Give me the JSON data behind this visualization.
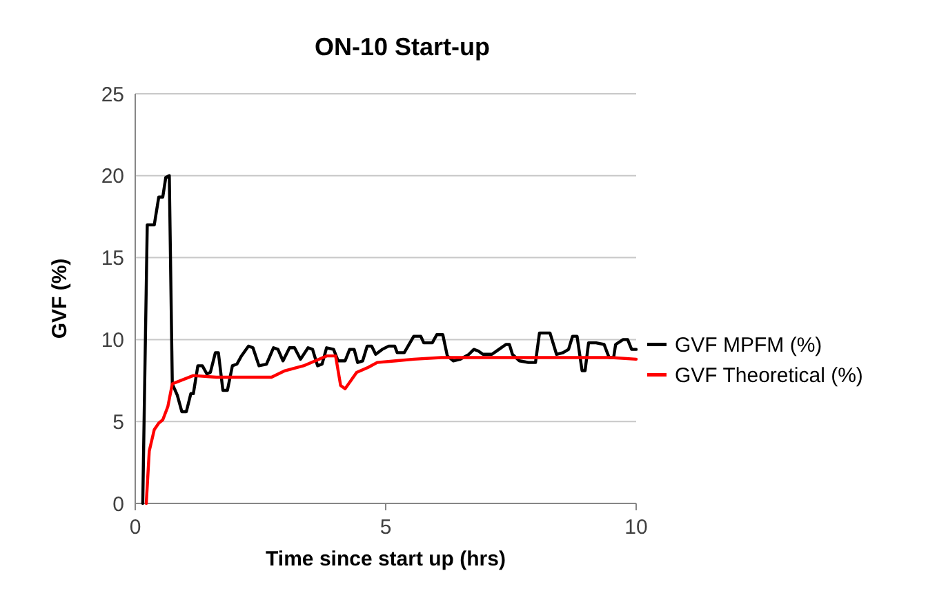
{
  "chart_data": {
    "type": "line",
    "title": "ON-10 Start-up",
    "xlabel": "Time since start up (hrs)",
    "ylabel": "GVF (%)",
    "xlim": [
      0,
      10
    ],
    "xticks": [
      0,
      5,
      10
    ],
    "ylim": [
      0,
      25
    ],
    "yticks": [
      0,
      5,
      10,
      15,
      20,
      25
    ],
    "grid": "y",
    "legend": "right",
    "marker": "none",
    "line_style": "solid",
    "series": [
      {
        "name": "GVF MPFM (%)",
        "color": "#000000",
        "x": [
          0.15,
          0.24,
          0.38,
          0.47,
          0.55,
          0.61,
          0.68,
          0.74,
          0.84,
          0.93,
          1.02,
          1.11,
          1.16,
          1.25,
          1.34,
          1.43,
          1.5,
          1.6,
          1.66,
          1.75,
          1.84,
          1.94,
          2.03,
          2.12,
          2.26,
          2.35,
          2.47,
          2.62,
          2.76,
          2.85,
          2.95,
          3.08,
          3.18,
          3.3,
          3.45,
          3.54,
          3.64,
          3.73,
          3.82,
          3.96,
          4.05,
          4.19,
          4.28,
          4.37,
          4.44,
          4.54,
          4.63,
          4.72,
          4.8,
          4.93,
          5.06,
          5.18,
          5.23,
          5.37,
          5.56,
          5.7,
          5.76,
          5.93,
          6.02,
          6.14,
          6.23,
          6.35,
          6.49,
          6.66,
          6.76,
          6.85,
          6.94,
          7.12,
          7.26,
          7.4,
          7.47,
          7.53,
          7.67,
          7.85,
          7.99,
          8.07,
          8.28,
          8.41,
          8.54,
          8.65,
          8.73,
          8.82,
          8.92,
          8.98,
          9.05,
          9.2,
          9.36,
          9.46,
          9.55,
          9.59,
          9.74,
          9.83,
          9.91,
          10.0
        ],
        "values": [
          0,
          17.0,
          17.0,
          18.7,
          18.7,
          19.9,
          20.0,
          7.3,
          6.6,
          5.6,
          5.6,
          6.7,
          6.7,
          8.4,
          8.4,
          7.9,
          8.0,
          9.2,
          9.2,
          6.9,
          6.9,
          8.4,
          8.5,
          9.0,
          9.6,
          9.5,
          8.4,
          8.5,
          9.5,
          9.4,
          8.7,
          9.5,
          9.5,
          8.8,
          9.5,
          9.4,
          8.4,
          8.5,
          9.5,
          9.4,
          8.7,
          8.7,
          9.4,
          9.4,
          8.6,
          8.7,
          9.6,
          9.6,
          9.1,
          9.4,
          9.6,
          9.6,
          9.2,
          9.2,
          10.2,
          10.2,
          9.8,
          9.8,
          10.3,
          10.3,
          9.0,
          8.7,
          8.8,
          9.1,
          9.4,
          9.3,
          9.1,
          9.1,
          9.4,
          9.7,
          9.7,
          9.1,
          8.7,
          8.6,
          8.6,
          10.4,
          10.4,
          9.1,
          9.2,
          9.4,
          10.2,
          10.2,
          8.1,
          8.1,
          9.8,
          9.8,
          9.7,
          8.9,
          8.9,
          9.7,
          10.0,
          10.0,
          9.4,
          9.4
        ]
      },
      {
        "name": "GVF Theoretical  (%)",
        "color": "#ff0000",
        "x": [
          0.22,
          0.28,
          0.38,
          0.47,
          0.55,
          0.65,
          0.74,
          1.16,
          1.62,
          2.72,
          2.99,
          3.36,
          3.82,
          4.0,
          4.1,
          4.19,
          4.42,
          4.65,
          4.83,
          5.2,
          5.56,
          6.11,
          6.66,
          7.5,
          8.5,
          9.5,
          10.0
        ],
        "values": [
          0,
          3.2,
          4.5,
          4.9,
          5.1,
          5.9,
          7.3,
          7.8,
          7.7,
          7.7,
          8.1,
          8.4,
          9.0,
          9.0,
          7.2,
          7.0,
          8.0,
          8.3,
          8.6,
          8.7,
          8.8,
          8.9,
          8.9,
          8.9,
          8.9,
          8.9,
          8.8
        ]
      }
    ]
  }
}
